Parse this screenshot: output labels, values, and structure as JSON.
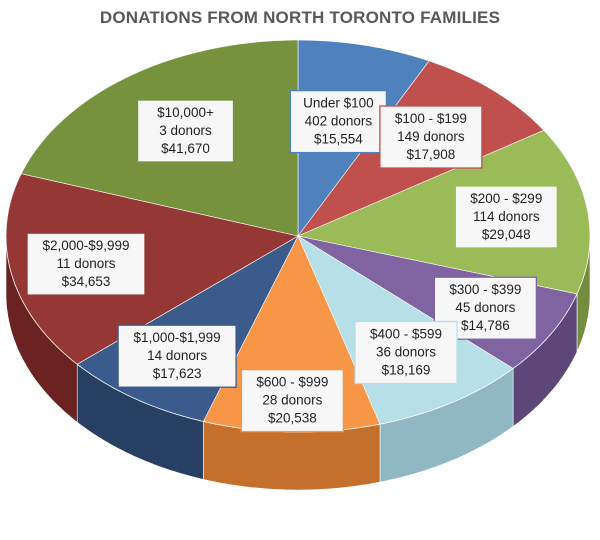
{
  "chart_data": {
    "type": "pie",
    "title": "DONATIONS FROM NORTH TORONTO FAMILIES",
    "slices": [
      {
        "label": "Under $100",
        "donors_text": "402 donors",
        "amount_text": "$15,554",
        "donors": 402,
        "value": 15554,
        "color": "#4f81bd",
        "side": "#38618f"
      },
      {
        "label": "$100 - $199",
        "donors_text": "149 donors",
        "amount_text": "$17,908",
        "donors": 149,
        "value": 17908,
        "color": "#c0504d",
        "side": "#8f3532"
      },
      {
        "label": "$200 - $299",
        "donors_text": "114 donors",
        "amount_text": "$29,048",
        "donors": 114,
        "value": 29048,
        "color": "#9bbb59",
        "side": "#728d3e"
      },
      {
        "label": "$300 - $399",
        "donors_text": "45 donors",
        "amount_text": "$14,786",
        "donors": 45,
        "value": 14786,
        "color": "#8064a2",
        "side": "#5d4778"
      },
      {
        "label": "$400 - $599",
        "donors_text": "36 donors",
        "amount_text": "$18,169",
        "donors": 36,
        "value": 18169,
        "color": "#b7dfe8",
        "side": "#8fb8c2"
      },
      {
        "label": "$600 - $999",
        "donors_text": "28 donors",
        "amount_text": "$20,538",
        "donors": 28,
        "value": 20538,
        "color": "#f79646",
        "side": "#c4702c"
      },
      {
        "label": "$1,000-$1,999",
        "donors_text": "14 donors",
        "amount_text": "$17,623",
        "donors": 14,
        "value": 17623,
        "color": "#3b5b8c",
        "side": "#273f63"
      },
      {
        "label": "$2,000-$9,999",
        "donors_text": "11 donors",
        "amount_text": "$34,653",
        "donors": 11,
        "value": 34653,
        "color": "#953735",
        "side": "#6a2321"
      },
      {
        "label": "$10,000+",
        "donors_text": "3 donors",
        "amount_text": "$41,670",
        "donors": 3,
        "value": 41670,
        "color": "#76923c",
        "side": "#546a28"
      }
    ],
    "start": "top",
    "direction": "clockwise",
    "legend": "none",
    "style": "3d-tilted"
  }
}
